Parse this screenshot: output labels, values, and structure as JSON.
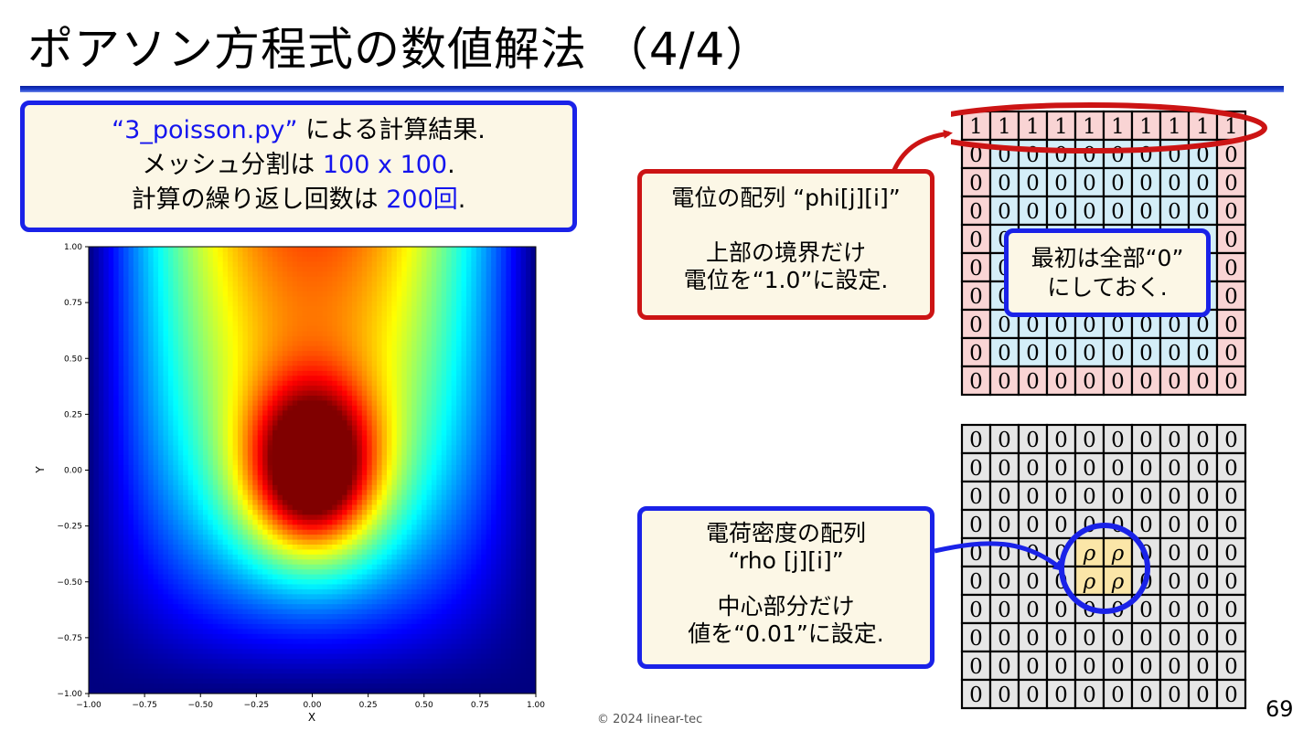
{
  "title": "ポアソン方程式の数値解法 （4/4）",
  "info": {
    "line1_blue": "“3_poisson.py”",
    "line1_rest": " による計算結果.",
    "line2_pre": "メッシュ分割は ",
    "line2_blue": "100 x 100",
    "line2_post": ".",
    "line3_pre": "計算の繰り返し回数は ",
    "line3_blue": "200回",
    "line3_post": "."
  },
  "chart_data": {
    "type": "heatmap",
    "xlabel": "X",
    "ylabel": "Y",
    "xlim": [
      -1.0,
      1.0
    ],
    "ylim": [
      -1.0,
      1.0
    ],
    "xticks": [
      "−1.00",
      "−0.75",
      "−0.50",
      "−0.25",
      "0.00",
      "0.25",
      "0.50",
      "0.75",
      "1.00"
    ],
    "yticks": [
      "1.00",
      "0.75",
      "0.50",
      "0.25",
      "0.00",
      "−0.25",
      "−0.50",
      "−0.75",
      "−1.00"
    ],
    "colormap": "jet",
    "top_boundary_value": 1.0,
    "peak_location": [
      0.0,
      0.0
    ]
  },
  "phi_callout": {
    "line1": "電位の配列 “phi[j][i]”",
    "line2": "上部の境界だけ",
    "line3": "電位を“1.0”に設定."
  },
  "init_callout": {
    "line1": "最初は全部“0”",
    "line2": "にしておく."
  },
  "rho_callout": {
    "line1": "電荷密度の配列",
    "line2": "“rho [j][i]”",
    "line3": "中心部分だけ",
    "line4": "値を“0.01”に設定."
  },
  "grids": {
    "zero": "0",
    "one": "1",
    "rho": "ρ",
    "phi_boundary_color": "#f9d4d4",
    "phi_interior_color": "#d4eef8",
    "rho_cell_color": "#e6e6e6",
    "rho_center_color": "#fbe6a8"
  },
  "footer": "© 2024 linear-tec",
  "page_number": "69"
}
